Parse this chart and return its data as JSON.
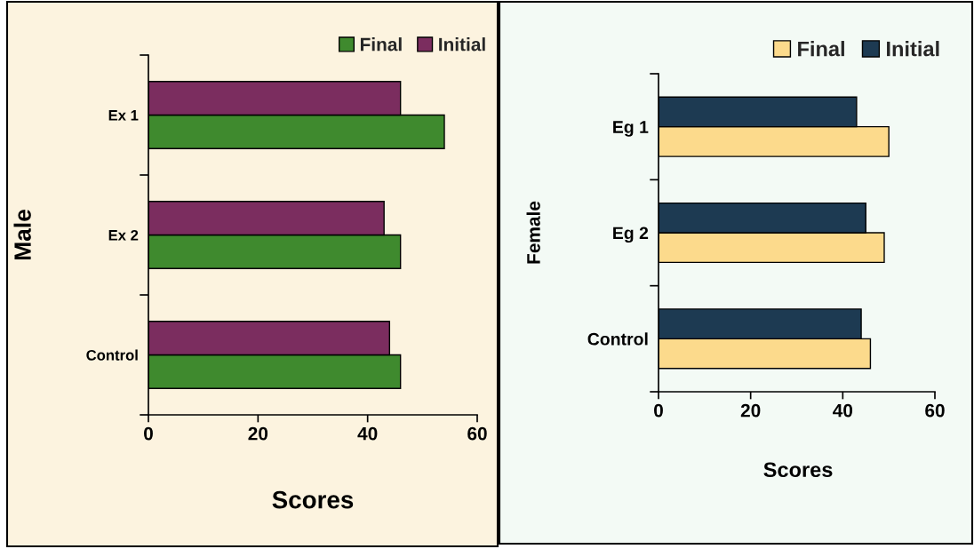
{
  "chart_data": [
    {
      "type": "bar",
      "orientation": "horizontal",
      "categories": [
        "Ex 1",
        "Ex 2",
        "Control"
      ],
      "series": [
        {
          "name": "Final",
          "color": "#3f8a2e",
          "values": [
            54,
            46,
            46
          ]
        },
        {
          "name": "Initial",
          "color": "#7b2d5f",
          "values": [
            46,
            43,
            44
          ]
        }
      ],
      "xlabel": "Scores",
      "ylabel": "Male",
      "xlim": [
        0,
        60
      ],
      "xticks": [
        0,
        20,
        40,
        60
      ],
      "legend": "top right"
    },
    {
      "type": "bar",
      "orientation": "horizontal",
      "categories": [
        "Eg 1",
        "Eg 2",
        "Control"
      ],
      "series": [
        {
          "name": "Final",
          "color": "#fcda8c",
          "values": [
            50,
            49,
            46
          ]
        },
        {
          "name": "Initial",
          "color": "#1d3a52",
          "values": [
            43,
            45,
            44
          ]
        }
      ],
      "xlabel": "Scores",
      "ylabel": "Female",
      "xlim": [
        0,
        60
      ],
      "xticks": [
        0,
        20,
        40,
        60
      ],
      "legend": "top right"
    }
  ]
}
